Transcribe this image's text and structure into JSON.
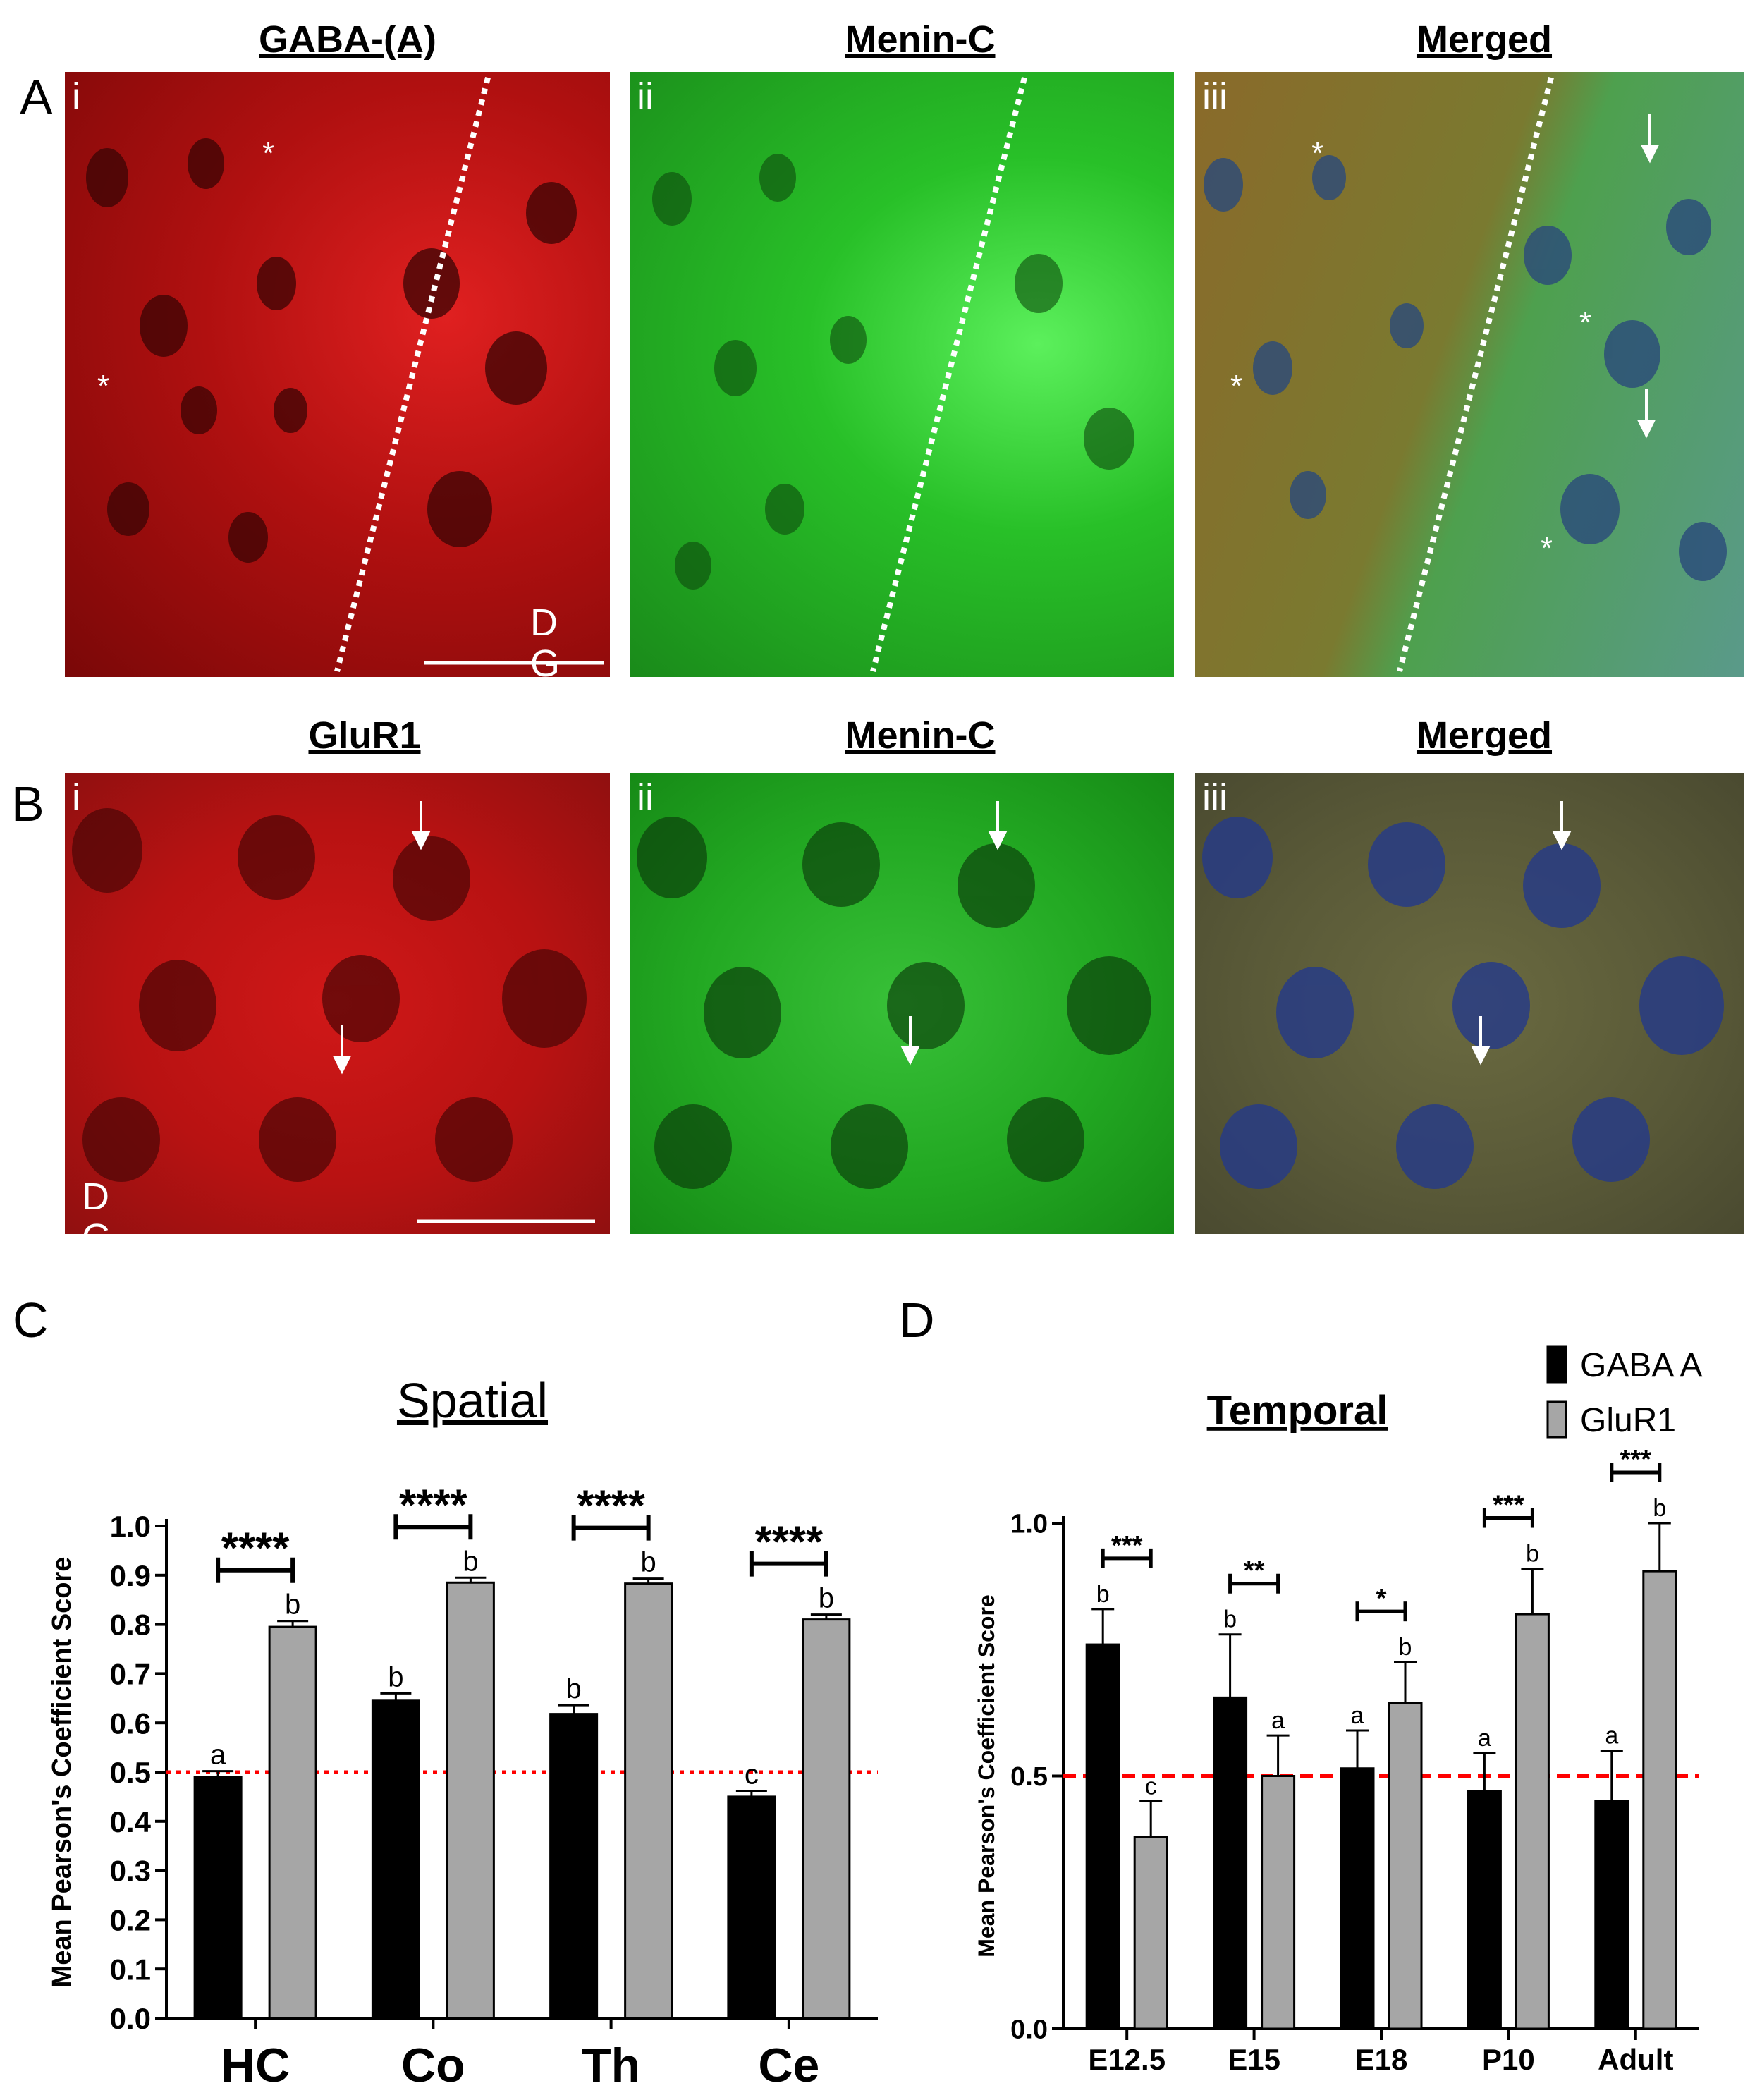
{
  "figure": {
    "panel_labels": {
      "A": "A",
      "B": "B",
      "C": "C",
      "D": "D"
    },
    "row_a": {
      "headers": [
        "GABA-(A)",
        "Menin-C",
        "Merged"
      ],
      "numerals": [
        "i",
        "ii",
        "iii"
      ],
      "dg_label": "D\nG",
      "colors": [
        "#c81414",
        "#22c022",
        "#6a8a3a"
      ]
    },
    "row_b": {
      "headers": [
        "GluR1",
        "Menin-C",
        "Merged"
      ],
      "numerals": [
        "i",
        "ii",
        "iii"
      ],
      "dg_label": "D\nG",
      "colors": [
        "#c81414",
        "#22b022",
        "#5a6a48"
      ]
    }
  },
  "chart_data": [
    {
      "type": "bar",
      "title": "Spatial",
      "ylabel": "Mean Pearson's Coefficient Score",
      "categories": [
        "HC",
        "Co",
        "Th",
        "Ce"
      ],
      "ylim": [
        0,
        1.0
      ],
      "yticks": [
        "0.0",
        "0.1",
        "0.2",
        "0.3",
        "0.4",
        "0.5",
        "0.6",
        "0.7",
        "0.8",
        "0.9",
        "1.0"
      ],
      "series": [
        {
          "name": "GABA A",
          "color": "#000000",
          "values": [
            0.49,
            0.645,
            0.618,
            0.45
          ],
          "errors": [
            0.012,
            0.015,
            0.018,
            0.012
          ],
          "letters": [
            "a",
            "b",
            "b",
            "c"
          ]
        },
        {
          "name": "GluR1",
          "color": "#a6a6a6",
          "values": [
            0.795,
            0.885,
            0.883,
            0.81
          ],
          "errors": [
            0.012,
            0.01,
            0.01,
            0.01
          ],
          "letters": [
            "b",
            "b",
            "b",
            "b"
          ]
        }
      ],
      "significance": [
        "****",
        "****",
        "****",
        "****"
      ],
      "reference_line": {
        "y": 0.5,
        "color": "#ff0000",
        "style": "dotted"
      },
      "grid": false
    },
    {
      "type": "bar",
      "title": "Temporal",
      "ylabel": "Mean Pearson's Coefficient Score",
      "categories": [
        "E12.5",
        "E15",
        "E18",
        "P10",
        "Adult"
      ],
      "ylim": [
        0,
        1.0
      ],
      "yticks": [
        "0.0",
        "0.5",
        "1.0"
      ],
      "series": [
        {
          "name": "GABA A",
          "color": "#000000",
          "values": [
            0.76,
            0.655,
            0.515,
            0.47,
            0.45
          ],
          "errors": [
            0.07,
            0.125,
            0.075,
            0.075,
            0.1
          ],
          "letters": [
            "b",
            "b",
            "a",
            "a",
            "a"
          ]
        },
        {
          "name": "GluR1",
          "color": "#a6a6a6",
          "values": [
            0.38,
            0.5,
            0.645,
            0.82,
            0.905
          ],
          "errors": [
            0.07,
            0.08,
            0.08,
            0.09,
            0.095
          ],
          "letters": [
            "c",
            "a",
            "b",
            "b",
            "b"
          ]
        }
      ],
      "significance": [
        "***",
        "**",
        "*",
        "***",
        "***"
      ],
      "reference_line": {
        "y": 0.5,
        "color": "#ff0000",
        "style": "dashed"
      },
      "legend": {
        "placement": "top-right",
        "entries": [
          "GABA A",
          "GluR1"
        ]
      },
      "grid": false
    }
  ]
}
